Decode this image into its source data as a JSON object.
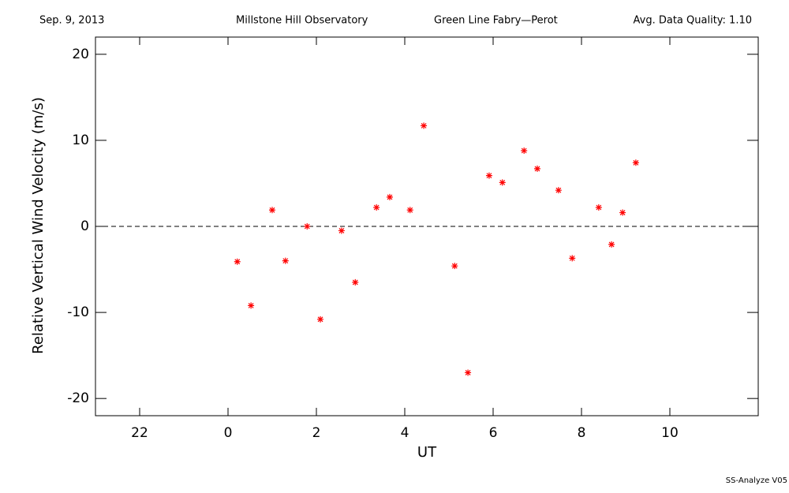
{
  "chart_data": {
    "type": "scatter",
    "date": "Sep. 9, 2013",
    "observatory": "Millstone Hill Observatory",
    "instrument": "Green Line Fabry—Perot",
    "quality": "Avg. Data Quality: 1.10",
    "footer": "SS-Analyze V05",
    "xlabel": "UT",
    "ylabel": "Relative Vertical Wind Velocity (m/s)",
    "xlim": [
      -3,
      12
    ],
    "ylim": [
      -22,
      22
    ],
    "xticks": [
      {
        "value": -2,
        "label": "22"
      },
      0,
      2,
      4,
      6,
      8,
      10
    ],
    "yticks": [
      -20,
      -10,
      0,
      10,
      20
    ],
    "hline": 0,
    "color": "#ff0000",
    "x": [
      0.21,
      0.52,
      1.0,
      1.3,
      1.79,
      2.09,
      2.57,
      2.88,
      3.36,
      3.66,
      4.12,
      4.43,
      5.13,
      5.43,
      5.91,
      6.21,
      6.7,
      7.0,
      7.48,
      7.79,
      8.39,
      8.68,
      8.93,
      9.23
    ],
    "values": [
      -4.1,
      -9.2,
      1.9,
      -4.0,
      0,
      -10.8,
      -0.5,
      -6.5,
      2.2,
      3.4,
      1.9,
      11.7,
      -4.6,
      -17.0,
      5.9,
      5.1,
      8.8,
      6.7,
      4.2,
      -3.7,
      2.2,
      -2.1,
      1.6,
      7.4
    ]
  }
}
